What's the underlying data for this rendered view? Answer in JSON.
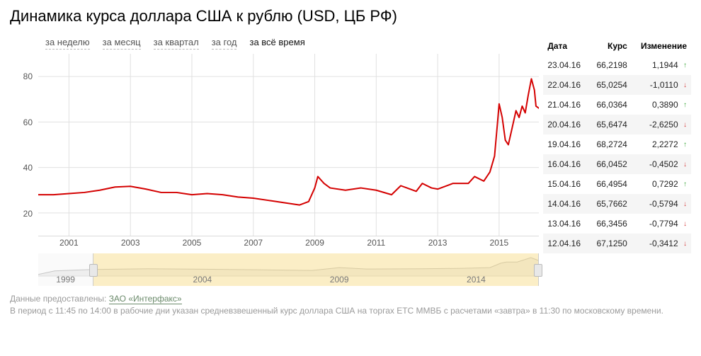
{
  "title": "Динамика курса доллара США к рублю (USD, ЦБ РФ)",
  "tabs": [
    {
      "label": "за неделю",
      "active": false
    },
    {
      "label": "за месяц",
      "active": false
    },
    {
      "label": "за квартал",
      "active": false
    },
    {
      "label": "за год",
      "active": false
    },
    {
      "label": "за всё время",
      "active": true
    }
  ],
  "chart": {
    "type": "line",
    "line_color": "#d40000",
    "line_width": 2,
    "grid_color": "#e0e0e0",
    "axis_color": "#d9d9d9",
    "bg_color": "#ffffff",
    "y": {
      "min": 10,
      "max": 90,
      "ticks": [
        20,
        40,
        60,
        80
      ]
    },
    "x": {
      "min": 2000,
      "max": 2016.3,
      "ticks": [
        2001,
        2003,
        2005,
        2007,
        2009,
        2011,
        2013,
        2015
      ]
    },
    "series": [
      [
        2000.0,
        28
      ],
      [
        2000.5,
        28
      ],
      [
        2001.0,
        28.5
      ],
      [
        2001.5,
        29
      ],
      [
        2002.0,
        30
      ],
      [
        2002.5,
        31.4
      ],
      [
        2003.0,
        31.7
      ],
      [
        2003.5,
        30.5
      ],
      [
        2004.0,
        29
      ],
      [
        2004.5,
        29
      ],
      [
        2005.0,
        28
      ],
      [
        2005.5,
        28.5
      ],
      [
        2006.0,
        28
      ],
      [
        2006.5,
        27
      ],
      [
        2007.0,
        26.5
      ],
      [
        2007.5,
        25.5
      ],
      [
        2008.0,
        24.5
      ],
      [
        2008.5,
        23.5
      ],
      [
        2008.8,
        25
      ],
      [
        2009.0,
        31
      ],
      [
        2009.1,
        36
      ],
      [
        2009.3,
        33
      ],
      [
        2009.5,
        31
      ],
      [
        2010.0,
        30
      ],
      [
        2010.5,
        31
      ],
      [
        2011.0,
        30
      ],
      [
        2011.5,
        28
      ],
      [
        2011.8,
        32
      ],
      [
        2012.0,
        31
      ],
      [
        2012.3,
        29.5
      ],
      [
        2012.5,
        33
      ],
      [
        2012.8,
        31
      ],
      [
        2013.0,
        30.5
      ],
      [
        2013.5,
        33
      ],
      [
        2014.0,
        33
      ],
      [
        2014.2,
        36
      ],
      [
        2014.5,
        34
      ],
      [
        2014.7,
        38
      ],
      [
        2014.85,
        45
      ],
      [
        2014.95,
        60
      ],
      [
        2015.0,
        68
      ],
      [
        2015.1,
        62
      ],
      [
        2015.2,
        52
      ],
      [
        2015.3,
        50
      ],
      [
        2015.4,
        56
      ],
      [
        2015.55,
        65
      ],
      [
        2015.65,
        62
      ],
      [
        2015.75,
        67
      ],
      [
        2015.85,
        64
      ],
      [
        2015.95,
        72
      ],
      [
        2016.05,
        79
      ],
      [
        2016.15,
        74
      ],
      [
        2016.2,
        67
      ],
      [
        2016.3,
        66
      ]
    ]
  },
  "mini": {
    "bg": "#fafafa",
    "overview_bg": "#ffeeb0",
    "line_color": "#c7c7c7",
    "x": {
      "min": 1998,
      "max": 2016.3
    },
    "labels": [
      1999,
      2004,
      2009,
      2014
    ],
    "selection": {
      "from": 2000.0,
      "to": 2016.3
    },
    "series": [
      [
        1998,
        7
      ],
      [
        1998.6,
        22
      ],
      [
        1999,
        24
      ],
      [
        2000,
        28
      ],
      [
        2002,
        31
      ],
      [
        2004,
        29
      ],
      [
        2006,
        27
      ],
      [
        2008,
        24
      ],
      [
        2009,
        36
      ],
      [
        2010,
        30
      ],
      [
        2012,
        31
      ],
      [
        2013.5,
        33
      ],
      [
        2014.5,
        36
      ],
      [
        2014.9,
        55
      ],
      [
        2015.1,
        60
      ],
      [
        2015.5,
        60
      ],
      [
        2016.0,
        79
      ],
      [
        2016.3,
        66
      ]
    ],
    "y": {
      "min": 0,
      "max": 85
    }
  },
  "table": {
    "headers": [
      "Дата",
      "Курс",
      "Изменение"
    ],
    "rows": [
      {
        "date": "23.04.16",
        "rate": "66,2198",
        "change": "1,1944",
        "dir": "up"
      },
      {
        "date": "22.04.16",
        "rate": "65,0254",
        "change": "-1,0110",
        "dir": "down"
      },
      {
        "date": "21.04.16",
        "rate": "66,0364",
        "change": "0,3890",
        "dir": "up"
      },
      {
        "date": "20.04.16",
        "rate": "65,6474",
        "change": "-2,6250",
        "dir": "down"
      },
      {
        "date": "19.04.16",
        "rate": "68,2724",
        "change": "2,2272",
        "dir": "up"
      },
      {
        "date": "16.04.16",
        "rate": "66,0452",
        "change": "-0,4502",
        "dir": "down"
      },
      {
        "date": "15.04.16",
        "rate": "66,4954",
        "change": "0,7292",
        "dir": "up"
      },
      {
        "date": "14.04.16",
        "rate": "65,7662",
        "change": "-0,5794",
        "dir": "down"
      },
      {
        "date": "13.04.16",
        "rate": "66,3456",
        "change": "-0,7794",
        "dir": "down"
      },
      {
        "date": "12.04.16",
        "rate": "67,1250",
        "change": "-0,3412",
        "dir": "down"
      }
    ],
    "alt_row_bg": "#f5f5f5",
    "up_color": "#3aa63a",
    "down_color": "#d43a3a"
  },
  "footer": {
    "prefix": "Данные предоставлены: ",
    "link_text": "ЗАО «Интерфакс»",
    "note": "В период с 11:45 по 14:00 в рабочие дни указан средневзвешенный курс доллара США на торгах ЕТС ММВБ с расчетами «завтра» в 11:30 по московскому времени."
  }
}
